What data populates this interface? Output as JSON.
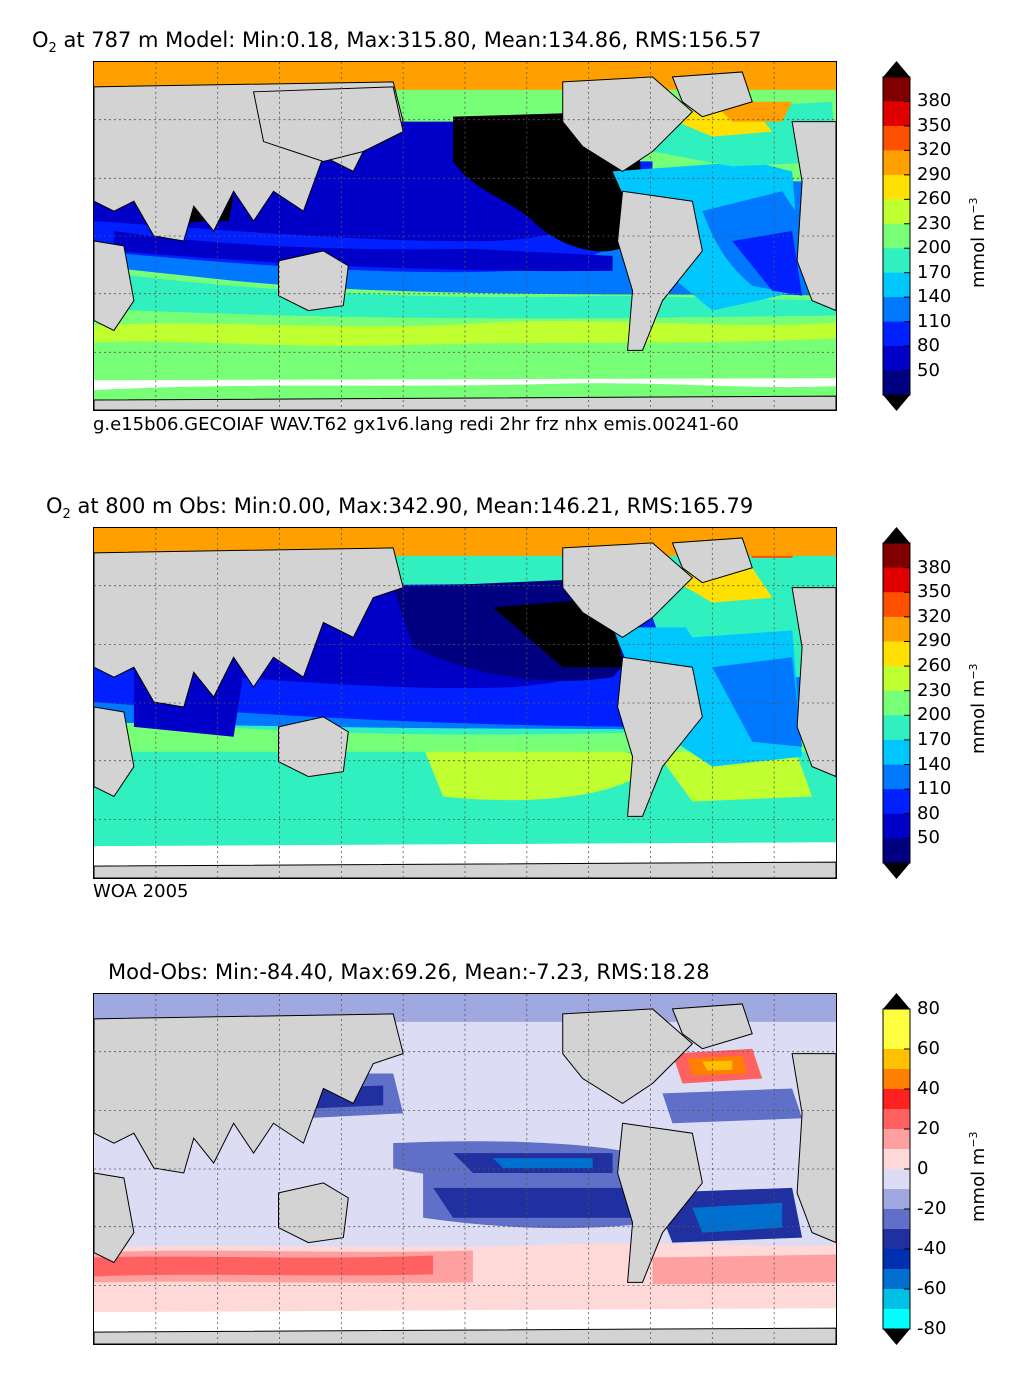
{
  "panels": [
    {
      "id": "model",
      "title_prefix": "O",
      "title_sub": "2",
      "title_rest": " at 787 m Model: Min:0.18, Max:315.80, Mean:134.86, RMS:156.57",
      "caption": "g.e15b06.GECOIAF WAV.T62 gx1v6.lang redi 2hr frz nhx emis.00241-60",
      "colorbar_ticks": [
        "380",
        "350",
        "320",
        "290",
        "260",
        "230",
        "200",
        "170",
        "140",
        "110",
        "80",
        "50"
      ],
      "unit_base": "mmol m",
      "unit_exp": "−3"
    },
    {
      "id": "obs",
      "title_prefix": "O",
      "title_sub": "2",
      "title_rest": " at 800 m Obs: Min:0.00, Max:342.90, Mean:146.21, RMS:165.79",
      "caption": "WOA 2005",
      "colorbar_ticks": [
        "380",
        "350",
        "320",
        "290",
        "260",
        "230",
        "200",
        "170",
        "140",
        "110",
        "80",
        "50"
      ],
      "unit_base": "mmol m",
      "unit_exp": "−3"
    },
    {
      "id": "diff",
      "title": "Mod-Obs: Min:-84.40, Max:69.26, Mean:-7.23, RMS:18.28",
      "colorbar_ticks": [
        "80",
        "60",
        "40",
        "20",
        "0",
        "-20",
        "-40",
        "-60",
        "-80"
      ],
      "unit_base": "mmol m",
      "unit_exp": "−3"
    }
  ],
  "colors": {
    "land": "#d3d3d3",
    "ice": "#ffffff",
    "o2_scale": [
      "#000080",
      "#0000c8",
      "#0020ff",
      "#0078ff",
      "#00c8ff",
      "#30f0c0",
      "#78ff78",
      "#c0ff30",
      "#ffe000",
      "#ffa000",
      "#ff5000",
      "#e00000",
      "#800000"
    ],
    "diff_scale": [
      "#00ffff",
      "#00c0e8",
      "#0070d0",
      "#0030b0",
      "#2030a0",
      "#6070c8",
      "#a0a8e0",
      "#dcdcf4",
      "#ffd8d8",
      "#ffa0a0",
      "#ff6060",
      "#ff2020",
      "#ff8000",
      "#ffc000",
      "#ffff40"
    ]
  }
}
